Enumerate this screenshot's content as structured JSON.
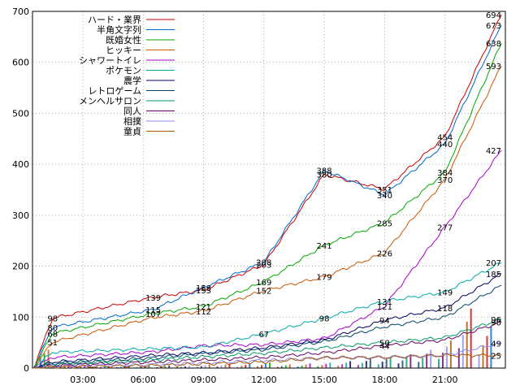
{
  "chart_data": {
    "type": "line",
    "title": "",
    "xlabel": "",
    "ylabel": "",
    "x_range_hours": [
      0.5,
      24
    ],
    "ylim": [
      0,
      700
    ],
    "y_ticks": [
      0,
      100,
      200,
      300,
      400,
      500,
      600,
      700
    ],
    "x_ticks": [
      "03:00",
      "06:00",
      "09:00",
      "12:00",
      "15:00",
      "18:00",
      "21:00"
    ],
    "legend_position": "top-left",
    "grid": true,
    "bars": {
      "note_hidden": true,
      "hours": [
        1,
        2,
        3,
        4,
        5,
        6,
        7,
        8,
        9,
        10,
        11,
        12,
        13,
        14,
        15,
        16,
        17,
        18,
        19,
        20,
        21,
        22,
        23
      ],
      "values": [
        40,
        10,
        8,
        5,
        6,
        7,
        6,
        5,
        8,
        10,
        9,
        12,
        8,
        10,
        12,
        15,
        20,
        25,
        30,
        40,
        60,
        130,
        90
      ]
    },
    "series": [
      {
        "name": "ハード・業界",
        "color": "#cc0000",
        "points": [
          [
            0.55,
            0
          ],
          [
            1.5,
            98
          ],
          [
            6.5,
            139
          ],
          [
            9,
            153
          ],
          [
            12,
            203
          ],
          [
            15,
            380
          ],
          [
            18,
            351
          ],
          [
            21,
            454
          ],
          [
            23.8,
            694
          ]
        ]
      },
      {
        "name": "半角文字列",
        "color": "#0066cc",
        "points": [
          [
            0.55,
            0
          ],
          [
            1.5,
            80
          ],
          [
            6.5,
            115
          ],
          [
            9,
            158
          ],
          [
            12,
            208
          ],
          [
            15,
            388
          ],
          [
            18,
            340
          ],
          [
            21,
            440
          ],
          [
            23.8,
            673
          ]
        ]
      },
      {
        "name": "既婚女性",
        "color": "#00aa00",
        "points": [
          [
            0.55,
            0
          ],
          [
            1.5,
            68
          ],
          [
            6.5,
            107
          ],
          [
            9,
            121
          ],
          [
            12,
            169
          ],
          [
            15,
            241
          ],
          [
            18,
            285
          ],
          [
            21,
            384
          ],
          [
            23.8,
            638
          ]
        ]
      },
      {
        "name": "ヒッキー",
        "color": "#cc5500",
        "points": [
          [
            0.55,
            0
          ],
          [
            1.5,
            51
          ],
          [
            6.5,
            99
          ],
          [
            9,
            112
          ],
          [
            12,
            152
          ],
          [
            15,
            179
          ],
          [
            18,
            226
          ],
          [
            21,
            370
          ],
          [
            23.8,
            593
          ]
        ]
      },
      {
        "name": "シャワートイレ",
        "color": "#aa00cc",
        "points": [
          [
            0.55,
            0
          ],
          [
            1.5,
            21
          ],
          [
            6.5,
            32
          ],
          [
            9,
            44
          ],
          [
            12,
            46
          ],
          [
            15,
            58
          ],
          [
            18,
            121
          ],
          [
            21,
            277
          ],
          [
            23.8,
            427
          ]
        ]
      },
      {
        "name": "ポケモン",
        "color": "#00aaaa",
        "points": [
          [
            0.55,
            0
          ],
          [
            1.5,
            31
          ],
          [
            6.5,
            38
          ],
          [
            9,
            41
          ],
          [
            12,
            67
          ],
          [
            15,
            98
          ],
          [
            18,
            131
          ],
          [
            21,
            149
          ],
          [
            23.8,
            207
          ]
        ]
      },
      {
        "name": "農学",
        "color": "#000066",
        "points": [
          [
            0.55,
            0
          ],
          [
            1.5,
            12
          ],
          [
            6.5,
            25
          ],
          [
            9,
            30
          ],
          [
            12,
            40
          ],
          [
            15,
            55
          ],
          [
            18,
            94
          ],
          [
            21,
            118
          ],
          [
            23.8,
            185
          ]
        ]
      },
      {
        "name": "レトロゲーム",
        "color": "#004466",
        "points": [
          [
            0.55,
            0
          ],
          [
            1.5,
            9
          ],
          [
            6.5,
            20
          ],
          [
            9,
            28
          ],
          [
            12,
            36
          ],
          [
            15,
            52
          ],
          [
            18,
            81
          ],
          [
            21,
            100
          ],
          [
            23.8,
            162
          ]
        ]
      },
      {
        "name": "メンヘルサロン",
        "color": "#009966",
        "points": [
          [
            0.55,
            0
          ],
          [
            1.5,
            7
          ],
          [
            6.5,
            16
          ],
          [
            9,
            22
          ],
          [
            12,
            29
          ],
          [
            15,
            40
          ],
          [
            18,
            50
          ],
          [
            21,
            60
          ],
          [
            23.8,
            96
          ]
        ]
      },
      {
        "name": "同人",
        "color": "#660066",
        "points": [
          [
            0.55,
            0
          ],
          [
            1.5,
            5
          ],
          [
            6.5,
            12
          ],
          [
            9,
            16
          ],
          [
            12,
            21
          ],
          [
            15,
            30
          ],
          [
            18,
            44
          ],
          [
            21,
            55
          ],
          [
            23.8,
            90
          ]
        ]
      },
      {
        "name": "相撲",
        "color": "#8888ff",
        "points": [
          [
            0.55,
            0
          ],
          [
            1.5,
            3
          ],
          [
            6.5,
            7
          ],
          [
            9,
            10
          ],
          [
            12,
            15
          ],
          [
            15,
            20
          ],
          [
            18,
            21
          ],
          [
            21,
            25
          ],
          [
            23.8,
            49
          ]
        ]
      },
      {
        "name": "童貞",
        "color": "#aa5500",
        "points": [
          [
            0.55,
            0
          ],
          [
            1.5,
            2
          ],
          [
            6.5,
            5
          ],
          [
            9,
            8
          ],
          [
            12,
            12
          ],
          [
            15,
            20
          ],
          [
            18,
            21
          ],
          [
            21,
            25
          ],
          [
            23.8,
            25
          ]
        ]
      }
    ],
    "value_labels": [
      {
        "series": 0,
        "x": 1.5,
        "text": "98"
      },
      {
        "series": 1,
        "x": 1.5,
        "text": "80"
      },
      {
        "series": 2,
        "x": 1.5,
        "text": "68"
      },
      {
        "series": 3,
        "x": 1.5,
        "text": "51"
      },
      {
        "series": 0,
        "x": 6.5,
        "text": "139"
      },
      {
        "series": 1,
        "x": 6.5,
        "text": "115"
      },
      {
        "series": 2,
        "x": 6.5,
        "text": "107"
      },
      {
        "series": 0,
        "x": 9,
        "text": "153"
      },
      {
        "series": 1,
        "x": 9,
        "text": "158"
      },
      {
        "series": 2,
        "x": 9,
        "text": "121"
      },
      {
        "series": 3,
        "x": 9,
        "text": "112"
      },
      {
        "series": 0,
        "x": 12,
        "text": "203"
      },
      {
        "series": 1,
        "x": 12,
        "text": "208"
      },
      {
        "series": 2,
        "x": 12,
        "text": "169"
      },
      {
        "series": 3,
        "x": 12,
        "text": "152"
      },
      {
        "series": 3,
        "x": 15,
        "text": "179"
      },
      {
        "series": 2,
        "x": 15,
        "text": "241"
      },
      {
        "series": 0,
        "x": 15,
        "text": "380"
      },
      {
        "series": 1,
        "x": 15,
        "text": "388"
      },
      {
        "series": 0,
        "x": 18,
        "text": "351"
      },
      {
        "series": 1,
        "x": 18,
        "text": "340"
      },
      {
        "series": 2,
        "x": 18,
        "text": "285"
      },
      {
        "series": 3,
        "x": 18,
        "text": "226"
      },
      {
        "series": 5,
        "x": 18,
        "text": "131"
      },
      {
        "series": 4,
        "x": 18,
        "text": "121"
      },
      {
        "series": 0,
        "x": 21,
        "text": "454"
      },
      {
        "series": 1,
        "x": 21,
        "text": "440"
      },
      {
        "series": 2,
        "x": 21,
        "text": "384"
      },
      {
        "series": 3,
        "x": 21,
        "text": "370"
      },
      {
        "series": 4,
        "x": 21,
        "text": "277"
      },
      {
        "series": 5,
        "x": 21,
        "text": "149"
      },
      {
        "series": 6,
        "x": 21,
        "text": "118"
      },
      {
        "series": 0,
        "x": 23.8,
        "text": "694"
      },
      {
        "series": 1,
        "x": 23.8,
        "text": "673"
      },
      {
        "series": 2,
        "x": 23.8,
        "text": "638"
      },
      {
        "series": 3,
        "x": 23.8,
        "text": "593"
      },
      {
        "series": 4,
        "x": 23.8,
        "text": "427"
      },
      {
        "series": 5,
        "x": 23.8,
        "text": "207"
      },
      {
        "series": 6,
        "x": 23.8,
        "text": "185"
      },
      {
        "series": 5,
        "x": 12,
        "text": "67"
      },
      {
        "series": 5,
        "x": 15,
        "text": "98"
      },
      {
        "series": 6,
        "x": 18,
        "text": "94"
      },
      {
        "series": 8,
        "x": 18,
        "text": "50"
      },
      {
        "series": 9,
        "x": 18,
        "text": "44"
      },
      {
        "series": 8,
        "x": 23.8,
        "text": "96"
      },
      {
        "series": 9,
        "x": 23.8,
        "text": "90"
      },
      {
        "series": 10,
        "x": 23.8,
        "text": "49"
      },
      {
        "series": 11,
        "x": 23.8,
        "text": "25"
      }
    ]
  }
}
